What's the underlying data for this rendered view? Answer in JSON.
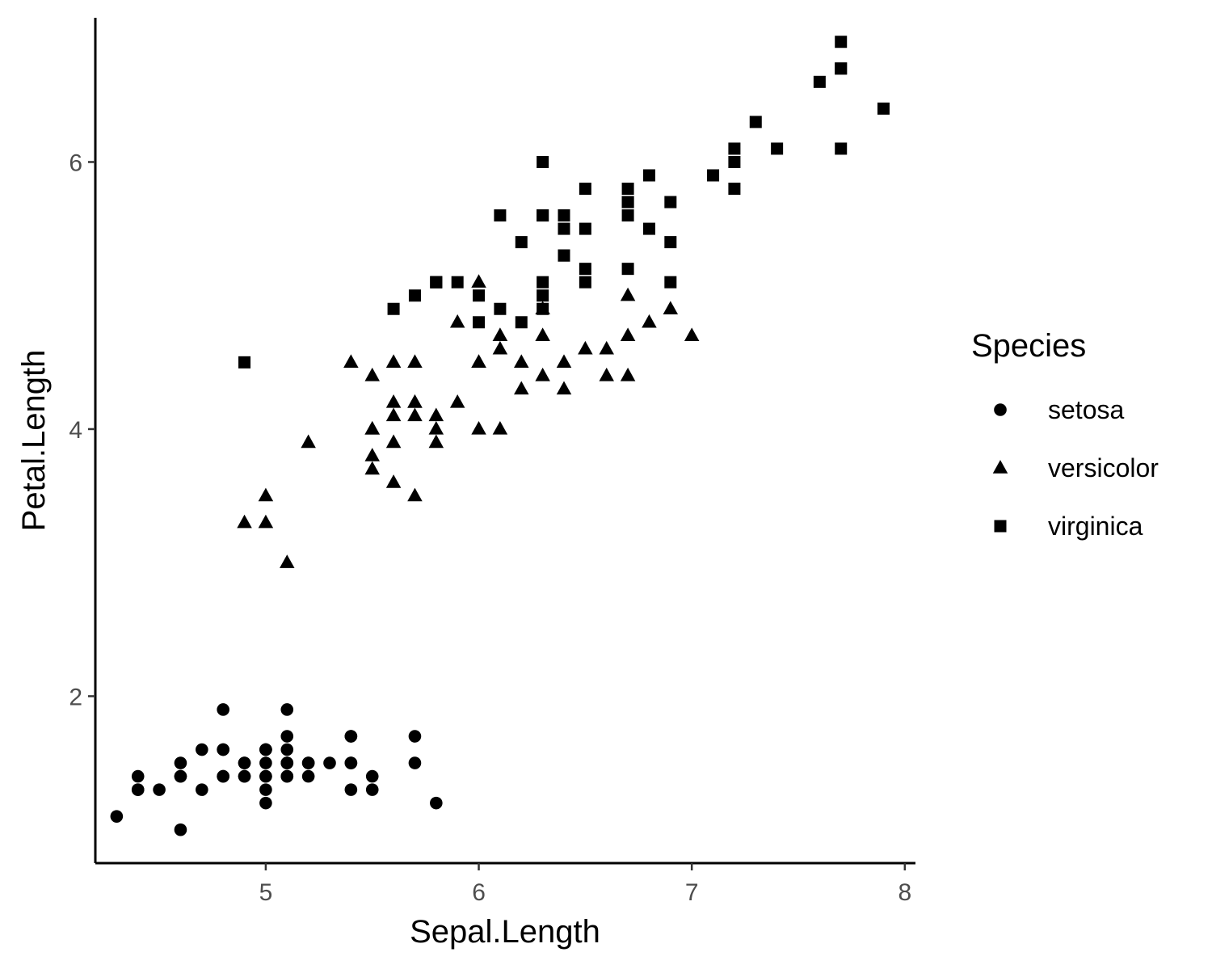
{
  "chart_data": {
    "type": "scatter",
    "xlabel": "Sepal.Length",
    "ylabel": "Petal.Length",
    "xlim": [
      4.2,
      8.05
    ],
    "ylim": [
      0.75,
      7.08
    ],
    "x_ticks": [
      5,
      6,
      7,
      8
    ],
    "y_ticks": [
      2,
      4,
      6
    ],
    "x_tick_labels": [
      "5",
      "6",
      "7",
      "8"
    ],
    "y_tick_labels": [
      "2",
      "4",
      "6"
    ],
    "grid": false,
    "legend": {
      "title": "Species",
      "position": "right"
    },
    "series": [
      {
        "name": "setosa",
        "shape": "circle",
        "color": "#000000",
        "points": [
          [
            5.1,
            1.4
          ],
          [
            4.9,
            1.4
          ],
          [
            4.7,
            1.3
          ],
          [
            4.6,
            1.5
          ],
          [
            5.0,
            1.4
          ],
          [
            5.4,
            1.7
          ],
          [
            4.6,
            1.4
          ],
          [
            5.0,
            1.5
          ],
          [
            4.4,
            1.4
          ],
          [
            4.9,
            1.5
          ],
          [
            5.4,
            1.5
          ],
          [
            4.8,
            1.6
          ],
          [
            4.8,
            1.4
          ],
          [
            4.3,
            1.1
          ],
          [
            5.8,
            1.2
          ],
          [
            5.7,
            1.5
          ],
          [
            5.4,
            1.3
          ],
          [
            5.1,
            1.4
          ],
          [
            5.7,
            1.7
          ],
          [
            5.1,
            1.5
          ],
          [
            5.4,
            1.7
          ],
          [
            5.1,
            1.5
          ],
          [
            4.6,
            1.0
          ],
          [
            5.1,
            1.7
          ],
          [
            4.8,
            1.9
          ],
          [
            5.0,
            1.6
          ],
          [
            5.0,
            1.6
          ],
          [
            5.2,
            1.5
          ],
          [
            5.2,
            1.4
          ],
          [
            4.7,
            1.6
          ],
          [
            4.8,
            1.6
          ],
          [
            5.4,
            1.5
          ],
          [
            5.2,
            1.5
          ],
          [
            5.5,
            1.4
          ],
          [
            4.9,
            1.5
          ],
          [
            5.0,
            1.2
          ],
          [
            5.5,
            1.3
          ],
          [
            4.9,
            1.4
          ],
          [
            4.4,
            1.3
          ],
          [
            5.1,
            1.5
          ],
          [
            5.0,
            1.3
          ],
          [
            4.5,
            1.3
          ],
          [
            4.4,
            1.3
          ],
          [
            5.0,
            1.6
          ],
          [
            5.1,
            1.9
          ],
          [
            4.8,
            1.4
          ],
          [
            5.1,
            1.6
          ],
          [
            4.6,
            1.4
          ],
          [
            5.3,
            1.5
          ],
          [
            5.0,
            1.4
          ]
        ]
      },
      {
        "name": "versicolor",
        "shape": "triangle",
        "color": "#000000",
        "points": [
          [
            7.0,
            4.7
          ],
          [
            6.4,
            4.5
          ],
          [
            6.9,
            4.9
          ],
          [
            5.5,
            4.0
          ],
          [
            6.5,
            4.6
          ],
          [
            5.7,
            4.5
          ],
          [
            6.3,
            4.7
          ],
          [
            4.9,
            3.3
          ],
          [
            6.6,
            4.6
          ],
          [
            5.2,
            3.9
          ],
          [
            5.0,
            3.5
          ],
          [
            5.9,
            4.2
          ],
          [
            6.0,
            4.0
          ],
          [
            6.1,
            4.7
          ],
          [
            5.6,
            3.6
          ],
          [
            6.7,
            4.4
          ],
          [
            5.6,
            4.5
          ],
          [
            5.8,
            4.1
          ],
          [
            6.2,
            4.5
          ],
          [
            5.6,
            3.9
          ],
          [
            5.9,
            4.8
          ],
          [
            6.1,
            4.0
          ],
          [
            6.3,
            4.9
          ],
          [
            6.1,
            4.7
          ],
          [
            6.4,
            4.3
          ],
          [
            6.6,
            4.4
          ],
          [
            6.8,
            4.8
          ],
          [
            6.7,
            5.0
          ],
          [
            6.0,
            4.5
          ],
          [
            5.7,
            3.5
          ],
          [
            5.5,
            3.8
          ],
          [
            5.5,
            3.7
          ],
          [
            5.8,
            3.9
          ],
          [
            6.0,
            5.1
          ],
          [
            5.4,
            4.5
          ],
          [
            6.0,
            4.5
          ],
          [
            6.7,
            4.7
          ],
          [
            6.3,
            4.4
          ],
          [
            5.6,
            4.1
          ],
          [
            5.5,
            4.0
          ],
          [
            5.5,
            4.4
          ],
          [
            6.1,
            4.6
          ],
          [
            5.8,
            4.0
          ],
          [
            5.0,
            3.3
          ],
          [
            5.6,
            4.2
          ],
          [
            5.7,
            4.2
          ],
          [
            5.7,
            4.2
          ],
          [
            6.2,
            4.3
          ],
          [
            5.1,
            3.0
          ],
          [
            5.7,
            4.1
          ]
        ]
      },
      {
        "name": "virginica",
        "shape": "square",
        "color": "#000000",
        "points": [
          [
            6.3,
            6.0
          ],
          [
            5.8,
            5.1
          ],
          [
            7.1,
            5.9
          ],
          [
            6.3,
            5.6
          ],
          [
            6.5,
            5.8
          ],
          [
            7.6,
            6.6
          ],
          [
            4.9,
            4.5
          ],
          [
            7.3,
            6.3
          ],
          [
            6.7,
            5.8
          ],
          [
            7.2,
            6.1
          ],
          [
            6.5,
            5.1
          ],
          [
            6.4,
            5.3
          ],
          [
            6.8,
            5.5
          ],
          [
            5.7,
            5.0
          ],
          [
            5.8,
            5.1
          ],
          [
            6.4,
            5.3
          ],
          [
            6.5,
            5.5
          ],
          [
            7.7,
            6.7
          ],
          [
            7.7,
            6.9
          ],
          [
            6.0,
            5.0
          ],
          [
            6.9,
            5.7
          ],
          [
            5.6,
            4.9
          ],
          [
            7.7,
            6.7
          ],
          [
            6.3,
            4.9
          ],
          [
            6.7,
            5.7
          ],
          [
            7.2,
            6.0
          ],
          [
            6.2,
            4.8
          ],
          [
            6.1,
            4.9
          ],
          [
            6.4,
            5.6
          ],
          [
            7.2,
            5.8
          ],
          [
            7.4,
            6.1
          ],
          [
            7.9,
            6.4
          ],
          [
            6.4,
            5.6
          ],
          [
            6.3,
            5.1
          ],
          [
            6.1,
            5.6
          ],
          [
            7.7,
            6.1
          ],
          [
            6.3,
            5.6
          ],
          [
            6.4,
            5.5
          ],
          [
            6.0,
            4.8
          ],
          [
            6.9,
            5.4
          ],
          [
            6.7,
            5.6
          ],
          [
            6.9,
            5.1
          ],
          [
            5.8,
            5.1
          ],
          [
            6.8,
            5.9
          ],
          [
            6.7,
            5.7
          ],
          [
            6.7,
            5.2
          ],
          [
            6.3,
            5.0
          ],
          [
            6.5,
            5.2
          ],
          [
            6.2,
            5.4
          ],
          [
            5.9,
            5.1
          ]
        ]
      }
    ]
  }
}
